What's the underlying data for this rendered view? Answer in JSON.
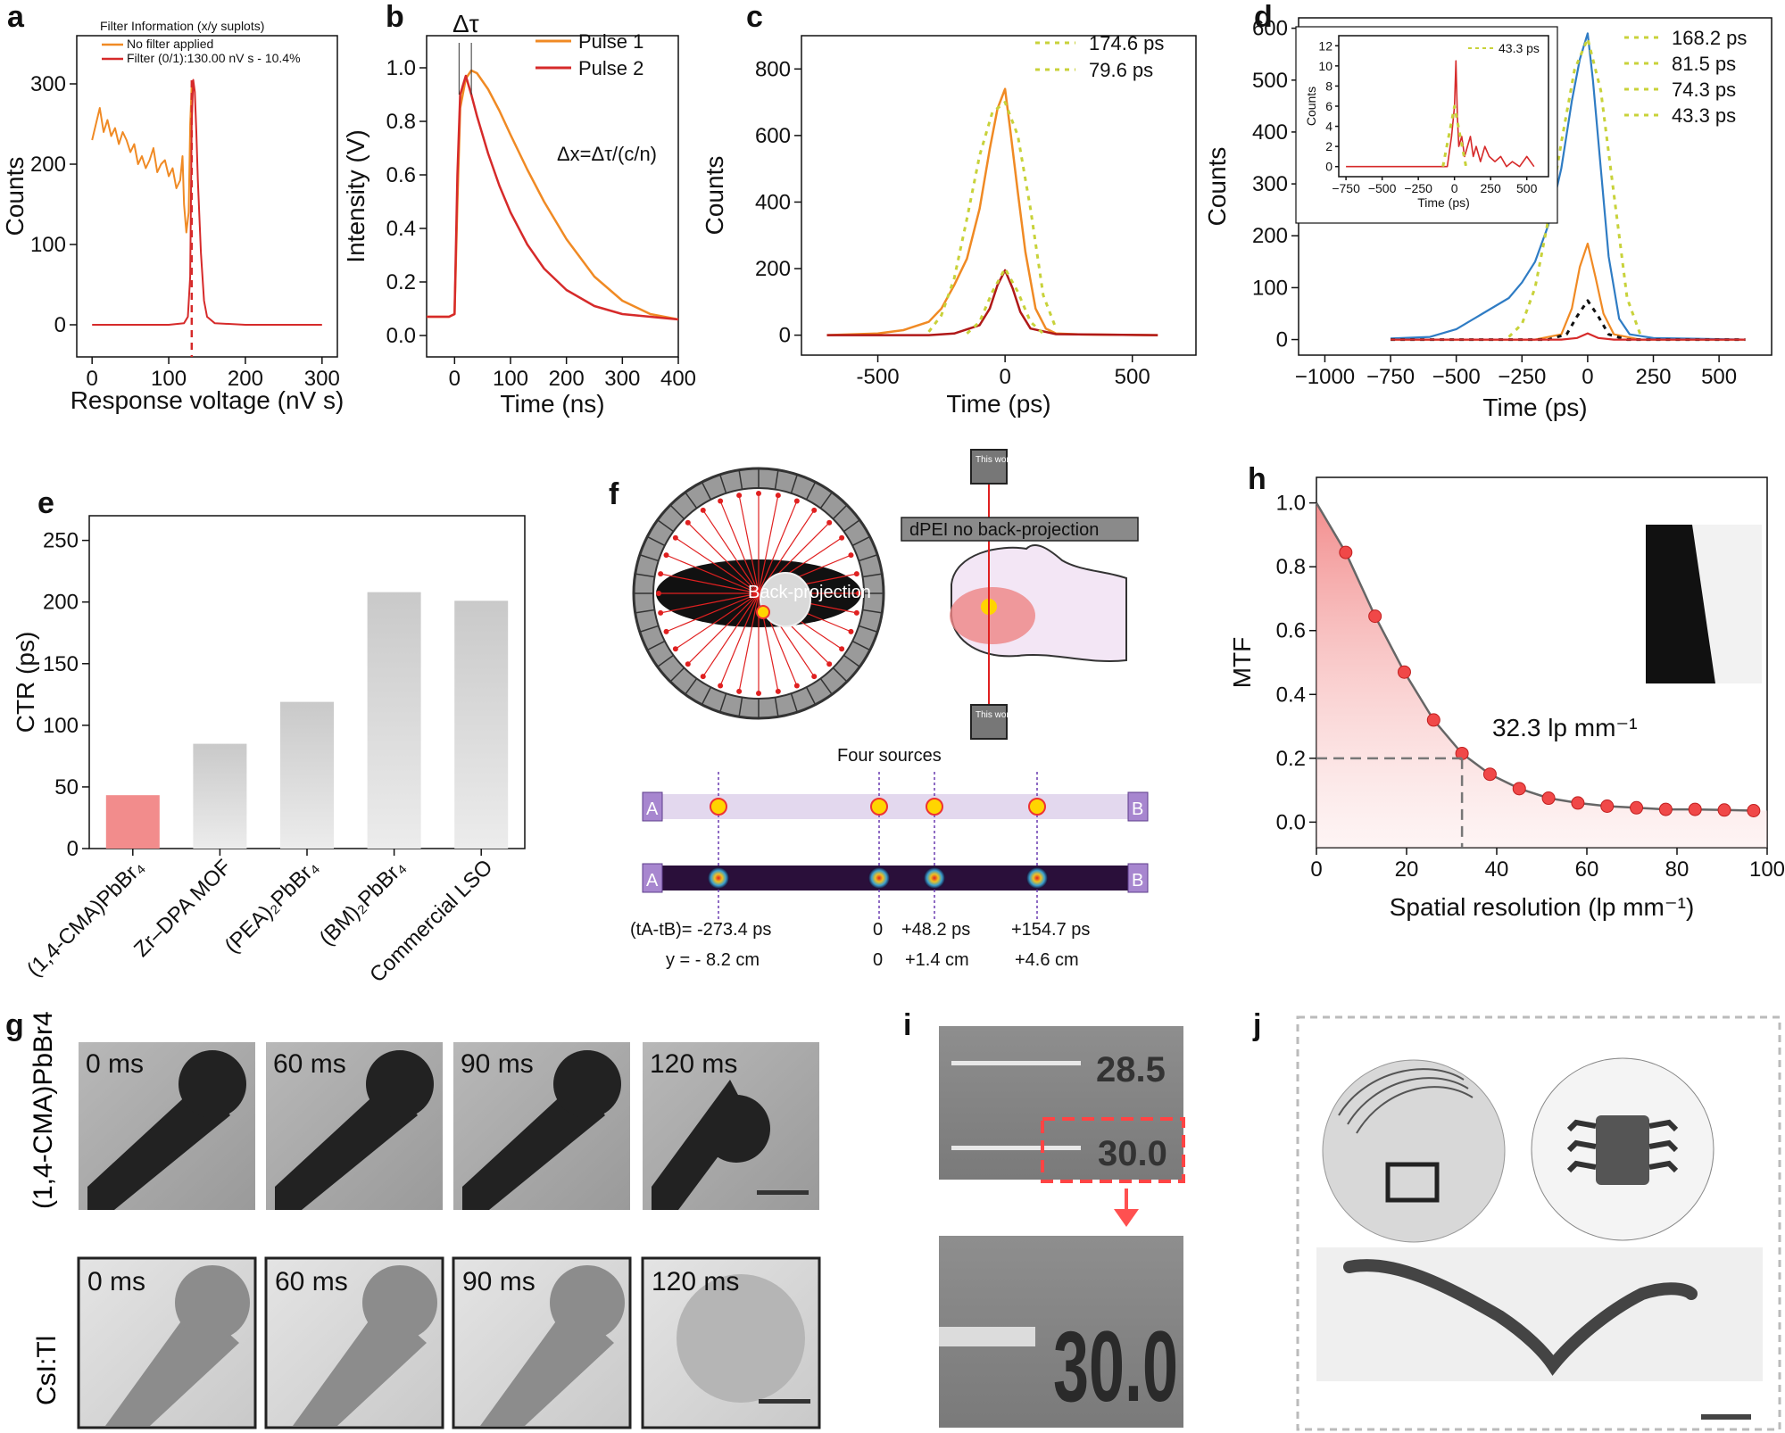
{
  "panels": {
    "a": "a",
    "b": "b",
    "c": "c",
    "d": "d",
    "e": "e",
    "f": "f",
    "g": "g",
    "h": "h",
    "i": "i",
    "j": "j"
  },
  "colors": {
    "orange": "#f08a24",
    "red": "#d62a2a",
    "darkred": "#b01818",
    "yellow": "#c8d23a",
    "blue": "#2f7cc4",
    "black": "#111111",
    "pink": "#f28c8c",
    "gray": "#cfcfcf"
  },
  "chart_data": [
    {
      "id": "a",
      "type": "line",
      "xlabel": "Response voltage (nV s)",
      "ylabel": "Counts",
      "xlim": [
        -20,
        320
      ],
      "ylim": [
        -40,
        360
      ],
      "xticks": [
        0,
        100,
        200,
        300
      ],
      "yticks": [
        0,
        100,
        200,
        300
      ],
      "legend_title": "Filter Information (x/y suplots)",
      "legend": [
        "No filter applied",
        "Filter (0/1):130.00 nV s - 10.4%"
      ],
      "series": [
        {
          "name": "No filter applied",
          "color": "#f08a24",
          "x": [
            0,
            5,
            10,
            15,
            20,
            25,
            30,
            35,
            40,
            45,
            50,
            55,
            60,
            65,
            70,
            75,
            80,
            85,
            90,
            95,
            100,
            105,
            110,
            115,
            118,
            120,
            123,
            126,
            128,
            130
          ],
          "y": [
            230,
            250,
            270,
            240,
            255,
            235,
            245,
            225,
            240,
            230,
            215,
            225,
            200,
            210,
            195,
            205,
            220,
            190,
            200,
            205,
            185,
            195,
            170,
            180,
            210,
            150,
            115,
            140,
            250,
            300
          ]
        },
        {
          "name": "Filter (0/1):130.00 nV s - 10.4%",
          "color": "#d62a2a",
          "x": [
            0,
            50,
            100,
            120,
            125,
            128,
            130,
            132,
            134,
            136,
            138,
            142,
            146,
            150,
            160,
            200,
            250,
            300
          ],
          "y": [
            0,
            0,
            0,
            2,
            10,
            60,
            250,
            305,
            290,
            240,
            180,
            90,
            30,
            10,
            2,
            0,
            0,
            0
          ]
        }
      ],
      "marker_x": 130
    },
    {
      "id": "b",
      "type": "line",
      "xlabel": "Time (ns)",
      "ylabel": "Intensity (V)",
      "xlim": [
        -50,
        400
      ],
      "ylim": [
        -0.08,
        1.12
      ],
      "xticks": [
        0,
        100,
        200,
        300,
        400
      ],
      "yticks": [
        0.0,
        0.2,
        0.4,
        0.6,
        0.8,
        1.0
      ],
      "annotations": [
        "Δτ",
        "Δx=Δτ/(c/n)"
      ],
      "series": [
        {
          "name": "Pulse 1",
          "color": "#f08a24",
          "x": [
            -50,
            -10,
            0,
            5,
            10,
            20,
            30,
            40,
            60,
            80,
            100,
            130,
            160,
            200,
            250,
            300,
            350,
            400
          ],
          "y": [
            0.07,
            0.07,
            0.08,
            0.5,
            0.85,
            0.96,
            0.99,
            0.98,
            0.92,
            0.84,
            0.75,
            0.62,
            0.5,
            0.36,
            0.22,
            0.13,
            0.08,
            0.06
          ]
        },
        {
          "name": "Pulse 2",
          "color": "#d62a2a",
          "x": [
            -50,
            -10,
            0,
            5,
            10,
            20,
            30,
            40,
            60,
            80,
            100,
            130,
            160,
            200,
            250,
            300,
            350,
            400
          ],
          "y": [
            0.07,
            0.07,
            0.08,
            0.6,
            0.9,
            0.97,
            0.9,
            0.82,
            0.68,
            0.56,
            0.46,
            0.34,
            0.25,
            0.17,
            0.11,
            0.08,
            0.07,
            0.06
          ]
        }
      ]
    },
    {
      "id": "c",
      "type": "line",
      "xlabel": "Time (ps)",
      "ylabel": "Counts",
      "xlim": [
        -800,
        750
      ],
      "ylim": [
        -60,
        900
      ],
      "xticks": [
        -500,
        0,
        500
      ],
      "yticks": [
        0,
        200,
        400,
        600,
        800
      ],
      "legend": [
        "174.6 ps",
        "79.6 ps"
      ],
      "series": [
        {
          "name": "data-1",
          "color": "#f08a24",
          "x": [
            -700,
            -500,
            -400,
            -300,
            -250,
            -200,
            -150,
            -100,
            -60,
            -30,
            0,
            20,
            50,
            80,
            120,
            160,
            200,
            300,
            600
          ],
          "y": [
            0,
            5,
            15,
            40,
            80,
            150,
            230,
            380,
            560,
            680,
            740,
            620,
            430,
            250,
            80,
            20,
            5,
            2,
            0
          ]
        },
        {
          "name": "data-2",
          "color": "#b01818",
          "x": [
            -700,
            -300,
            -200,
            -100,
            -60,
            -30,
            0,
            30,
            60,
            100,
            200,
            600
          ],
          "y": [
            0,
            0,
            5,
            30,
            80,
            150,
            195,
            140,
            70,
            20,
            3,
            0
          ]
        },
        {
          "name": "174.6 ps",
          "color": "#c8d23a",
          "dash": true,
          "x": [
            -300,
            -250,
            -200,
            -150,
            -100,
            -50,
            0,
            50,
            100,
            150,
            200
          ],
          "y": [
            10,
            60,
            170,
            350,
            540,
            670,
            700,
            600,
            380,
            120,
            20
          ]
        },
        {
          "name": "79.6 ps",
          "color": "#c8d23a",
          "dash": true,
          "x": [
            -150,
            -100,
            -50,
            0,
            50,
            100,
            150
          ],
          "y": [
            5,
            40,
            130,
            200,
            130,
            40,
            5
          ]
        }
      ]
    },
    {
      "id": "d",
      "type": "line",
      "xlabel": "Time (ps)",
      "ylabel": "Counts",
      "xlim": [
        -1100,
        700
      ],
      "ylim": [
        -30,
        620
      ],
      "xticks": [
        -1000,
        -750,
        -500,
        -250,
        0,
        250,
        500
      ],
      "xtick_labels": [
        "−1000",
        "−750",
        "−500",
        "−250",
        "0",
        "250",
        "500"
      ],
      "yticks": [
        0,
        100,
        200,
        300,
        400,
        500,
        600
      ],
      "legend": [
        "168.2 ps",
        "81.5 ps",
        "74.3 ps",
        "43.3 ps"
      ],
      "series": [
        {
          "name": "blue",
          "color": "#2f7cc4",
          "x": [
            -750,
            -600,
            -500,
            -400,
            -300,
            -250,
            -200,
            -150,
            -100,
            -60,
            -30,
            0,
            20,
            50,
            80,
            120,
            160,
            250,
            600
          ],
          "y": [
            2,
            5,
            20,
            50,
            80,
            110,
            150,
            220,
            330,
            460,
            540,
            590,
            500,
            330,
            160,
            40,
            10,
            3,
            0
          ]
        },
        {
          "name": "orange",
          "color": "#f08a24",
          "x": [
            -750,
            -200,
            -100,
            -60,
            -30,
            0,
            30,
            60,
            100,
            200,
            600
          ],
          "y": [
            0,
            0,
            10,
            60,
            140,
            185,
            120,
            50,
            10,
            0,
            0
          ]
        },
        {
          "name": "black",
          "color": "#111111",
          "dash": true,
          "x": [
            -750,
            -150,
            -80,
            -40,
            0,
            40,
            80,
            150,
            600
          ],
          "y": [
            0,
            0,
            10,
            45,
            75,
            45,
            10,
            0,
            0
          ]
        },
        {
          "name": "red",
          "color": "#d62a2a",
          "x": [
            -750,
            -100,
            -40,
            0,
            40,
            100,
            600
          ],
          "y": [
            0,
            0,
            3,
            12,
            3,
            0,
            0
          ]
        },
        {
          "name": "168.2 ps",
          "color": "#c8d23a",
          "dash": true,
          "x": [
            -300,
            -250,
            -200,
            -150,
            -100,
            -50,
            0,
            50,
            100,
            150,
            200
          ],
          "y": [
            5,
            30,
            100,
            230,
            380,
            520,
            580,
            480,
            280,
            80,
            10
          ]
        }
      ],
      "inset": {
        "xlabel": "Time (ps)",
        "ylabel": "Counts",
        "xlim": [
          -800,
          650
        ],
        "ylim": [
          -1,
          13
        ],
        "xticks": [
          -750,
          -500,
          -250,
          0,
          250,
          500
        ],
        "xtick_labels": [
          "−750",
          "−500",
          "−250",
          "0",
          "250",
          "500"
        ],
        "yticks": [
          0,
          2,
          4,
          6,
          8,
          10,
          12
        ],
        "legend": [
          "43.3 ps"
        ],
        "series": [
          {
            "name": "red",
            "color": "#d62a2a",
            "x": [
              -750,
              -100,
              -50,
              -20,
              0,
              10,
              20,
              30,
              50,
              70,
              90,
              110,
              130,
              150,
              180,
              210,
              240,
              280,
              320,
              360,
              400,
              450,
              500,
              550
            ],
            "y": [
              0,
              0,
              0,
              3,
              6,
              10.5,
              5,
              2,
              3,
              1,
              2,
              3,
              1,
              2,
              0.5,
              2,
              1,
              0.5,
              1,
              0,
              0.5,
              0,
              1,
              0
            ]
          },
          {
            "name": "43.3 ps",
            "color": "#c8d23a",
            "dash": true,
            "x": [
              -80,
              -40,
              0,
              40,
              80
            ],
            "y": [
              0,
              3,
              6,
              3,
              0
            ]
          }
        ]
      }
    },
    {
      "id": "e",
      "type": "bar",
      "ylabel": "CTR (ps)",
      "ylim": [
        0,
        270
      ],
      "yticks": [
        0,
        50,
        100,
        150,
        200,
        250
      ],
      "categories": [
        "(1,4-CMA)PbBr₄",
        "Zr–DPA MOF",
        "(PEA)₂PbBr₄",
        "(BM)₂PbBr₄",
        "Commercial LSO"
      ],
      "values": [
        43.3,
        85,
        119,
        208,
        201
      ],
      "bar_colors": [
        "#f28c8c",
        "#d6d6d6",
        "#d6d6d6",
        "#d6d6d6",
        "#d6d6d6"
      ]
    },
    {
      "id": "h",
      "type": "line",
      "xlabel": "Spatial resolution (lp mm⁻¹)",
      "ylabel": "MTF",
      "xlim": [
        0,
        100
      ],
      "ylim": [
        -0.08,
        1.08
      ],
      "xticks": [
        0,
        20,
        40,
        60,
        80,
        100
      ],
      "yticks": [
        0.0,
        0.2,
        0.4,
        0.6,
        0.8,
        1.0
      ],
      "annotation": "32.3 lp mm⁻¹",
      "threshold": {
        "x": 32.3,
        "y": 0.2
      },
      "x": [
        0,
        6.5,
        13,
        19.5,
        26,
        32.3,
        38.5,
        45,
        51.5,
        58,
        64.5,
        71,
        77.5,
        84,
        90.5,
        97
      ],
      "y": [
        1.0,
        0.845,
        0.645,
        0.47,
        0.32,
        0.215,
        0.15,
        0.105,
        0.075,
        0.06,
        0.05,
        0.045,
        0.04,
        0.04,
        0.038,
        0.036
      ]
    }
  ],
  "panel_f": {
    "title_top": "This work",
    "title_bottom": "This work",
    "label_box": "dPEI no back-projection",
    "backprojection": "Back-projection",
    "four_sources": "Four sources",
    "end_a": "A",
    "end_b": "B",
    "row_label": "(tA-tB)= -273.4 ps",
    "row_label_y": "y = - 8.2 cm",
    "times": [
      "0",
      "+48.2 ps",
      "+154.7 ps"
    ],
    "positions": [
      "0",
      "+1.4 cm",
      "+4.6 cm"
    ]
  },
  "panel_g": {
    "row1_label": "(1,4-CMA)PbBr4",
    "row2_label": "CsI:Tl",
    "frames": [
      "0 ms",
      "60 ms",
      "90 ms",
      "120 ms"
    ]
  },
  "panel_i": {
    "top_num_1": "28.5",
    "top_num_2": "30.0",
    "zoom_num": "30.0"
  }
}
